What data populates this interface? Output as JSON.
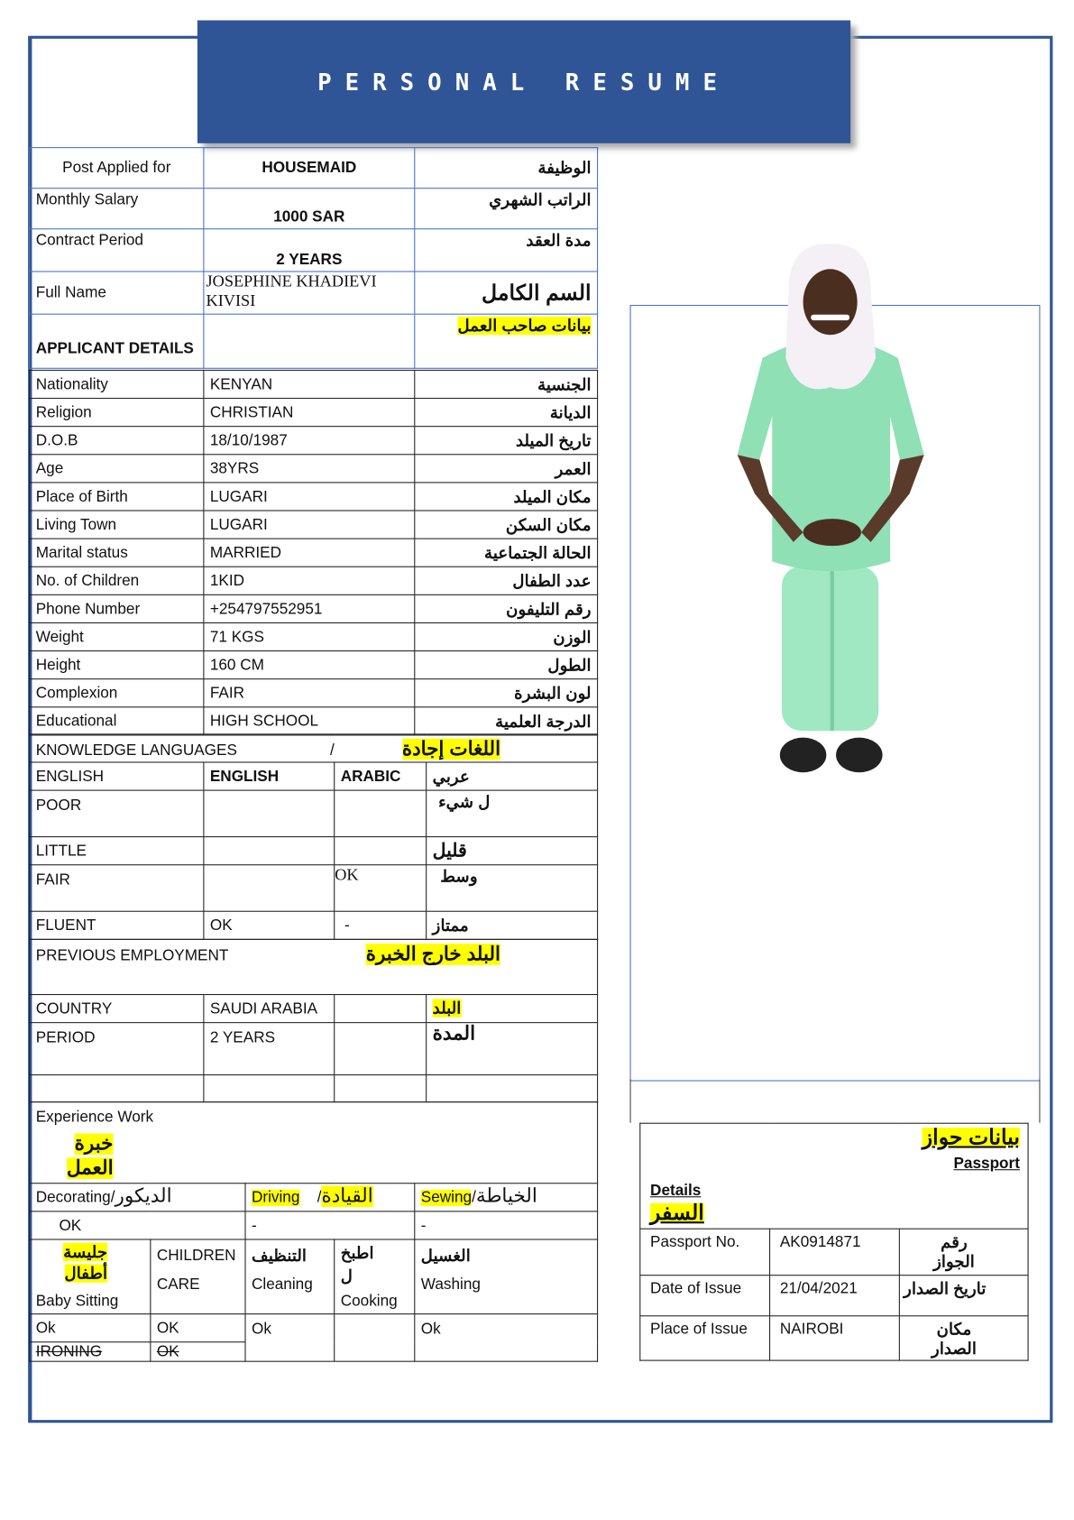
{
  "header": {
    "title": "PERSONAL RESUME"
  },
  "top": [
    {
      "en": "Post Applied for",
      "val": "HOUSEMAID",
      "ar": "الوظيفة"
    },
    {
      "en": "Monthly Salary",
      "val": "1000 SAR",
      "ar": "الراتب الشهري"
    },
    {
      "en": "Contract Period",
      "val": "2 YEARS",
      "ar": "مدة العقد"
    },
    {
      "en": "Full Name",
      "val": "JOSEPHINE KHADIEVI KIVISI",
      "ar": "السم الكامل"
    },
    {
      "en": "APPLICANT DETAILS",
      "val": "",
      "ar": "بيانات صاحب العمل"
    }
  ],
  "details": [
    {
      "en": "Nationality",
      "val": "KENYAN",
      "ar": "الجنسية"
    },
    {
      "en": "Religion",
      "val": "CHRISTIAN",
      "ar": "الديانة"
    },
    {
      "en": "D.O.B",
      "val": "18/10/1987",
      "ar": "تاريخ الميلد"
    },
    {
      "en": "Age",
      "val": "38YRS",
      "ar": "العمر"
    },
    {
      "en": "Place of Birth",
      "val": "LUGARI",
      "ar": "مكان الميلد"
    },
    {
      "en": "Living Town",
      "val": "LUGARI",
      "ar": "مكان السكن"
    },
    {
      "en": "Marital status",
      "val": "MARRIED",
      "ar": "الحالة الجتماعية"
    },
    {
      "en": "No. of Children",
      "val": "1KID",
      "ar": "عدد الطفال"
    },
    {
      "en": "Phone Number",
      "val": "+254797552951",
      "ar": "رقم التليفون"
    },
    {
      "en": "Weight",
      "val": "71 KGS",
      "ar": "الوزن"
    },
    {
      "en": "Height",
      "val": "160 CM",
      "ar": "الطول"
    },
    {
      "en": "Complexion",
      "val": "FAIR",
      "ar": "لون البشرة"
    },
    {
      "en": "Educational",
      "val": "HIGH SCHOOL",
      "ar": "الدرجة العلمية"
    }
  ],
  "languages": {
    "title": "KNOWLEDGE LANGUAGES",
    "sep": "/",
    "title_ar": "اللغات إجادة",
    "header": [
      "ENGLISH",
      "ENGLISH",
      "ARABIC",
      "عربي"
    ],
    "rows": [
      {
        "level": "POOR",
        "english": "",
        "arabic": "",
        "ar": "ل شيء"
      },
      {
        "level": "LITTLE",
        "english": "",
        "arabic": "",
        "ar": "قليل"
      },
      {
        "level": "FAIR",
        "english": "",
        "arabic": "OK",
        "ar": "وسط"
      },
      {
        "level": "FLUENT",
        "english": "OK",
        "arabic": "-",
        "ar": "ممتاز"
      }
    ]
  },
  "employment": {
    "title": "PREVIOUS EMPLOYMENT",
    "title_ar": "البلد خارج الخبرة",
    "rows": [
      {
        "en": "COUNTRY",
        "val": "SAUDI ARABIA",
        "ar": "البلد"
      },
      {
        "en": "PERIOD",
        "val": "2 YEARS",
        "ar": "المدة"
      }
    ]
  },
  "experience": {
    "title": "Experience Work",
    "title_ar": "خبرة العمل",
    "decorating": "Decorating/",
    "decorating_ar": "الديكور",
    "driving": "Driving",
    "driving_sep": "/",
    "driving_ar": "القيادة",
    "sewing": "Sewing",
    "sewing_sep": "/",
    "sewing_ar": "الخياطة",
    "decorating_val": "OK",
    "driving_val": "-",
    "sewing_val": "-",
    "baby_ar": "جليسة أطفال",
    "baby": "Baby Sitting",
    "children": "CHILDREN",
    "care": "CARE",
    "cleaning_ar": "التنظيف",
    "cleaning": "Cleaning",
    "cooking_ar": "اطبخ ل",
    "cooking": "Cooking",
    "washing_ar": "الغسيل",
    "washing": "Washing",
    "baby_val": "Ok",
    "children_val": "OK",
    "cleaning_val": "Ok",
    "washing_val": "Ok",
    "ironing": "IRONING",
    "ironing_val": "OK"
  },
  "passport": {
    "title_ar": "بيانات حواز",
    "title": "Passport",
    "details": "Details",
    "details_ar": "السفر",
    "rows": [
      {
        "en": "Passport No.",
        "val": "AK0914871",
        "ar": "رقم الجواز"
      },
      {
        "en": "Date of Issue",
        "val": "21/04/2021",
        "ar": "تاريخ الصدار"
      },
      {
        "en": "Place of Issue",
        "val": "NAIROBI",
        "ar": "مكان الصدار"
      }
    ]
  },
  "colors": {
    "accent": "#2f5597",
    "highlight": "#ffff00",
    "scrubs": "#8fe0b4"
  }
}
